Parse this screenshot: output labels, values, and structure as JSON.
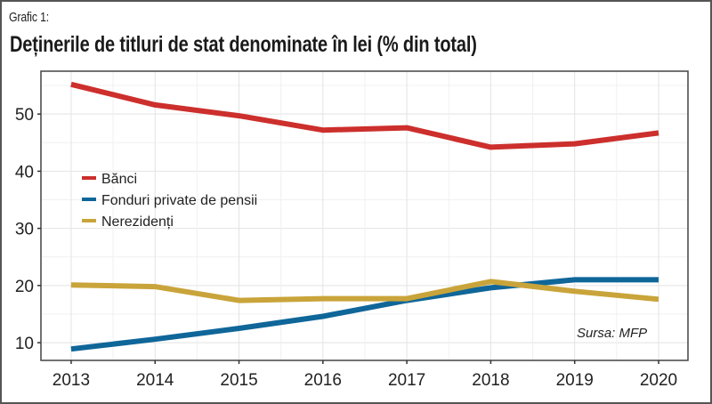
{
  "header": {
    "figure_label": "Grafic 1:",
    "title": "Deținerile de titluri de stat denominate în lei (% din total)"
  },
  "chart_data": {
    "type": "line",
    "title": "Deținerile de titluri de stat denominate în lei (% din total)",
    "xlabel": "",
    "ylabel": "",
    "x": [
      2013,
      2014,
      2015,
      2016,
      2017,
      2018,
      2019,
      2020
    ],
    "x_tick_labels": [
      "2013",
      "2014",
      "2015",
      "2016",
      "2017",
      "2018",
      "2019",
      "2020"
    ],
    "y_ticks": [
      10,
      20,
      30,
      40,
      50
    ],
    "y_tick_labels": [
      "10",
      "20",
      "30",
      "40",
      "50"
    ],
    "ylim": [
      6.9,
      57.5
    ],
    "xlim": [
      2012.64,
      2020.35
    ],
    "grid": true,
    "legend_position": "left-middle",
    "series": [
      {
        "name": "Bănci",
        "color": "#cc2f2c",
        "values": [
          55.2,
          51.6,
          49.7,
          47.2,
          47.6,
          44.2,
          44.8,
          46.7
        ]
      },
      {
        "name": "Fonduri private de pensii",
        "color": "#0f6699",
        "values": [
          8.9,
          10.6,
          12.5,
          14.6,
          17.4,
          19.6,
          21.0,
          21.0
        ]
      },
      {
        "name": "Nerezidenți",
        "color": "#c9a43a",
        "values": [
          20.1,
          19.8,
          17.4,
          17.7,
          17.7,
          20.7,
          19.0,
          17.6
        ]
      }
    ],
    "annotations": [
      "Sursa: MFP"
    ]
  },
  "source": "Sursa: MFP"
}
